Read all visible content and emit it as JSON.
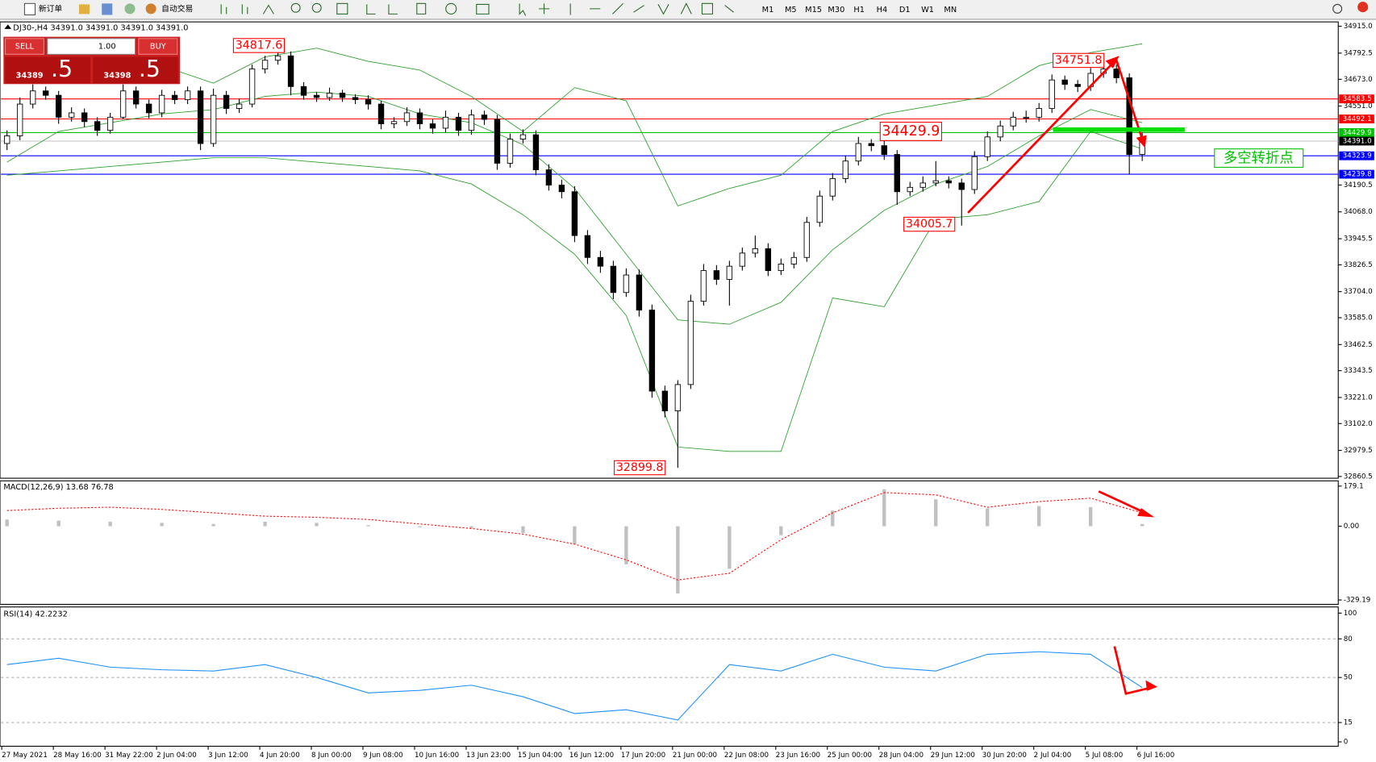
{
  "toolbar": {
    "new_order": "新订单",
    "auto_trading": "自动交易",
    "timeframes": [
      "M1",
      "M5",
      "M15",
      "M30",
      "H1",
      "H4",
      "D1",
      "W1",
      "MN"
    ]
  },
  "trade_panel": {
    "sell": "SELL",
    "buy": "BUY",
    "lots": "1.00",
    "bid_main": "34389",
    "bid_frac": ".5",
    "ask_main": "34398",
    "ask_frac": ".5"
  },
  "main_chart": {
    "header": "DJ30-,H4  34391.0 34391.0 34391.0 34391.0",
    "ylim": [
      32860.5,
      34915
    ],
    "yticks": [
      {
        "value": 34915,
        "label": "34915.0"
      },
      {
        "value": 34792.5,
        "label": "34792.5"
      },
      {
        "value": 34673,
        "label": "34673.0"
      },
      {
        "value": 34551,
        "label": "34551.0"
      },
      {
        "value": 34190.5,
        "label": "34190.5"
      },
      {
        "value": 34068,
        "label": "34068.0"
      },
      {
        "value": 33945.5,
        "label": "33945.5"
      },
      {
        "value": 33826.5,
        "label": "33826.5"
      },
      {
        "value": 33704,
        "label": "33704.0"
      },
      {
        "value": 33585,
        "label": "33585.0"
      },
      {
        "value": 33462.5,
        "label": "33462.5"
      },
      {
        "value": 33343.5,
        "label": "33343.5"
      },
      {
        "value": 33221,
        "label": "33221.0"
      },
      {
        "value": 33102,
        "label": "33102.0"
      },
      {
        "value": 32979.5,
        "label": "32979.5"
      },
      {
        "value": 32860.5,
        "label": "32860.5"
      }
    ],
    "candles": [
      [
        34380,
        34440,
        34350,
        34415
      ],
      [
        34415,
        34590,
        34395,
        34560
      ],
      [
        34560,
        34650,
        34540,
        34620
      ],
      [
        34620,
        34640,
        34580,
        34600
      ],
      [
        34600,
        34620,
        34470,
        34500
      ],
      [
        34500,
        34545,
        34480,
        34520
      ],
      [
        34520,
        34540,
        34455,
        34480
      ],
      [
        34480,
        34500,
        34415,
        34440
      ],
      [
        34440,
        34520,
        34425,
        34500
      ],
      [
        34500,
        34650,
        34490,
        34620
      ],
      [
        34620,
        34640,
        34540,
        34560
      ],
      [
        34560,
        34580,
        34495,
        34520
      ],
      [
        34520,
        34625,
        34500,
        34600
      ],
      [
        34600,
        34620,
        34560,
        34580
      ],
      [
        34580,
        34640,
        34560,
        34620
      ],
      [
        34620,
        34640,
        34350,
        34380
      ],
      [
        34380,
        34630,
        34365,
        34600
      ],
      [
        34600,
        34620,
        34515,
        34540
      ],
      [
        34540,
        34585,
        34520,
        34560
      ],
      [
        34560,
        34740,
        34545,
        34720
      ],
      [
        34720,
        34780,
        34700,
        34760
      ],
      [
        34760,
        34817.6,
        34740,
        34780
      ],
      [
        34780,
        34800,
        34600,
        34640
      ],
      [
        34640,
        34660,
        34580,
        34600
      ],
      [
        34600,
        34615,
        34570,
        34590
      ],
      [
        34590,
        34635,
        34575,
        34610
      ],
      [
        34610,
        34625,
        34570,
        34590
      ],
      [
        34590,
        34605,
        34560,
        34580
      ],
      [
        34580,
        34600,
        34535,
        34560
      ],
      [
        34560,
        34575,
        34445,
        34470
      ],
      [
        34470,
        34500,
        34450,
        34480
      ],
      [
        34480,
        34545,
        34460,
        34520
      ],
      [
        34520,
        34540,
        34445,
        34470
      ],
      [
        34470,
        34490,
        34425,
        34450
      ],
      [
        34450,
        34530,
        34430,
        34500
      ],
      [
        34500,
        34520,
        34415,
        34440
      ],
      [
        34440,
        34535,
        34420,
        34510
      ],
      [
        34510,
        34530,
        34465,
        34490
      ],
      [
        34490,
        34510,
        34260,
        34290
      ],
      [
        34290,
        34425,
        34270,
        34400
      ],
      [
        34400,
        34445,
        34380,
        34420
      ],
      [
        34420,
        34440,
        34235,
        34260
      ],
      [
        34260,
        34285,
        34165,
        34190
      ],
      [
        34190,
        34215,
        34130,
        34160
      ],
      [
        34160,
        34185,
        33930,
        33960
      ],
      [
        33960,
        33985,
        33830,
        33860
      ],
      [
        33860,
        33890,
        33790,
        33820
      ],
      [
        33820,
        33845,
        33670,
        33700
      ],
      [
        33700,
        33810,
        33680,
        33780
      ],
      [
        33780,
        33805,
        33590,
        33620
      ],
      [
        33620,
        33645,
        33220,
        33250
      ],
      [
        33250,
        33275,
        33130,
        33160
      ],
      [
        33160,
        33300,
        32899.8,
        33280
      ],
      [
        33280,
        33690,
        33260,
        33660
      ],
      [
        33660,
        33830,
        33640,
        33800
      ],
      [
        33800,
        33825,
        33735,
        33760
      ],
      [
        33760,
        33845,
        33640,
        33820
      ],
      [
        33820,
        33905,
        33800,
        33880
      ],
      [
        33880,
        33960,
        33860,
        33900
      ],
      [
        33900,
        33925,
        33775,
        33800
      ],
      [
        33800,
        33855,
        33780,
        33830
      ],
      [
        33830,
        33885,
        33810,
        33860
      ],
      [
        33860,
        34045,
        33840,
        34020
      ],
      [
        34020,
        34165,
        34000,
        34140
      ],
      [
        34140,
        34245,
        34120,
        34220
      ],
      [
        34220,
        34325,
        34200,
        34300
      ],
      [
        34300,
        34410,
        34280,
        34380
      ],
      [
        34380,
        34400,
        34345,
        34370
      ],
      [
        34370,
        34395,
        34305,
        34330
      ],
      [
        34330,
        34350,
        34100,
        34160
      ],
      [
        34160,
        34205,
        34140,
        34180
      ],
      [
        34180,
        34230,
        34160,
        34200
      ],
      [
        34200,
        34300,
        34185,
        34210
      ],
      [
        34210,
        34230,
        34175,
        34200
      ],
      [
        34200,
        34220,
        34005.7,
        34170
      ],
      [
        34170,
        34345,
        34150,
        34320
      ],
      [
        34320,
        34435,
        34300,
        34410
      ],
      [
        34410,
        34485,
        34390,
        34460
      ],
      [
        34460,
        34525,
        34440,
        34500
      ],
      [
        34500,
        34530,
        34475,
        34500
      ],
      [
        34500,
        34565,
        34480,
        34540
      ],
      [
        34540,
        34695,
        34520,
        34670
      ],
      [
        34670,
        34690,
        34625,
        34650
      ],
      [
        34650,
        34670,
        34615,
        34640
      ],
      [
        34640,
        34725,
        34620,
        34700
      ],
      [
        34700,
        34751.8,
        34680,
        34720
      ],
      [
        34720,
        34740,
        34655,
        34680
      ],
      [
        34680,
        34700,
        34240,
        34330
      ],
      [
        34330,
        34430,
        34300,
        34391
      ]
    ],
    "bands": {
      "color": "#2ca02c",
      "index": [
        0,
        4,
        8,
        12,
        16,
        20,
        24,
        28,
        32,
        36,
        40,
        44,
        48,
        52,
        56,
        60,
        64,
        68,
        72,
        76,
        80,
        84,
        88
      ],
      "upper": [
        34735,
        34755,
        34723,
        34735,
        34655,
        34775,
        34815,
        34755,
        34715,
        34595,
        34435,
        34635,
        34575,
        34095,
        34175,
        34235,
        34435,
        34515,
        34555,
        34595,
        34735,
        34795,
        34835
      ],
      "middle": [
        34295,
        34435,
        34475,
        34515,
        34535,
        34595,
        34615,
        34595,
        34515,
        34475,
        34375,
        34175,
        33875,
        33575,
        33555,
        33655,
        33895,
        34075,
        34195,
        34275,
        34415,
        34535,
        34475
      ],
      "lower": [
        34235,
        34255,
        34275,
        34295,
        34315,
        34315,
        34295,
        34275,
        34255,
        34195,
        34055,
        33875,
        33595,
        32995,
        32975,
        32975,
        33675,
        33635,
        34035,
        34055,
        34115,
        34435,
        34355
      ]
    },
    "levels": [
      {
        "value": 34583.5,
        "label": "34583.5",
        "color": "#ff0000",
        "tag": "#ff0000"
      },
      {
        "value": 34492.1,
        "label": "34492.1",
        "color": "#ff0000",
        "tag": "#ff0000"
      },
      {
        "value": 34429.9,
        "label": "34429.9",
        "color": "#00c000",
        "tag": "#00c000"
      },
      {
        "value": 34391,
        "label": "34391.0",
        "color": "#c0c0c0",
        "tag": "#000000"
      },
      {
        "value": 34323.9,
        "label": "34323.9",
        "color": "#0000ff",
        "tag": "#0000ff"
      },
      {
        "value": 34239.8,
        "label": "34239.8",
        "color": "#0000ff",
        "tag": "#0000ff"
      }
    ],
    "extremes": [
      34817.6,
      34751.8,
      34429.9,
      34005.7,
      32899.8
    ],
    "note": "多空转折点"
  },
  "macd": {
    "header": "MACD(12,26,9) 13.68 76.78",
    "ylim": [
      -329.19,
      179.1
    ],
    "yticks": [
      179.1,
      {
        "value": 0,
        "label": "0.00"
      },
      -329.19
    ],
    "index": [
      0,
      4,
      8,
      12,
      16,
      20,
      24,
      28,
      32,
      36,
      40,
      44,
      48,
      52,
      56,
      60,
      64,
      68,
      72,
      76,
      80,
      84,
      88
    ],
    "histogram": [
      30,
      25,
      20,
      15,
      10,
      20,
      15,
      5,
      -5,
      -10,
      -30,
      -80,
      -170,
      -300,
      -190,
      -40,
      70,
      165,
      120,
      80,
      90,
      85,
      10
    ],
    "signal": [
      70,
      80,
      85,
      75,
      60,
      45,
      40,
      30,
      10,
      -10,
      -35,
      -80,
      -150,
      -240,
      -210,
      -60,
      60,
      150,
      140,
      85,
      110,
      125,
      60
    ]
  },
  "rsi": {
    "header": "RSI(14) 42.2232",
    "ylim": [
      0,
      100
    ],
    "yticks": [
      100,
      80,
      50,
      15,
      0
    ],
    "levels": [
      80,
      50,
      15
    ],
    "index": [
      0,
      4,
      8,
      12,
      16,
      20,
      24,
      28,
      32,
      36,
      40,
      44,
      48,
      52,
      56,
      60,
      64,
      68,
      72,
      76,
      80,
      84,
      88
    ],
    "values": [
      60,
      65,
      58,
      56,
      55,
      60,
      50,
      38,
      40,
      44,
      35,
      22,
      25,
      17,
      60,
      55,
      68,
      58,
      55,
      68,
      70,
      68,
      42.2
    ]
  },
  "x_labels": [
    "27 May 2021",
    "28 May 16:00",
    "31 May 22:00",
    "2 Jun 04:00",
    "3 Jun 12:00",
    "4 Jun 20:00",
    "8 Jun 00:00",
    "9 Jun 08:00",
    "10 Jun 16:00",
    "13 Jun 23:00",
    "15 Jun 04:00",
    "16 Jun 12:00",
    "17 Jun 20:00",
    "21 Jun 00:00",
    "22 Jun 08:00",
    "23 Jun 16:00",
    "25 Jun 00:00",
    "28 Jun 04:00",
    "29 Jun 12:00",
    "30 Jun 20:00",
    "2 Jul 04:00",
    "5 Jul 08:00",
    "6 Jul 16:00"
  ]
}
